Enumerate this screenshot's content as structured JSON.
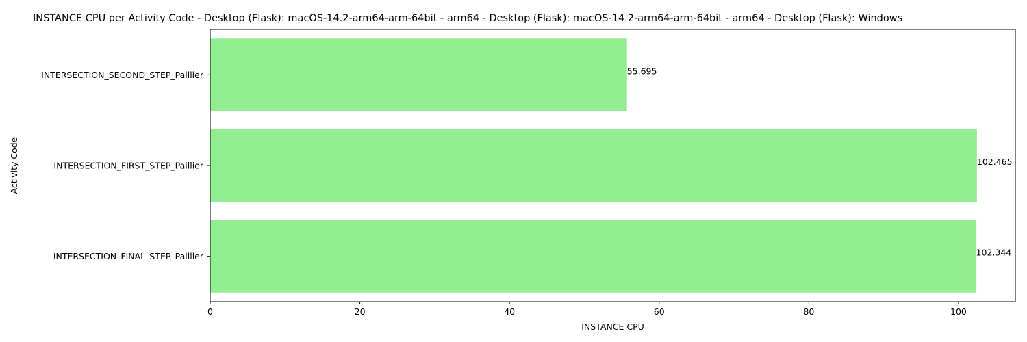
{
  "chart_data": {
    "type": "bar",
    "orientation": "horizontal",
    "title": "INSTANCE CPU per Activity Code - Desktop (Flask): macOS-14.2-arm64-arm-64bit - arm64 - Desktop (Flask): macOS-14.2-arm64-arm-64bit - arm64 - Desktop (Flask): Windows",
    "xlabel": "INSTANCE CPU",
    "ylabel": "Activity Code",
    "categories": [
      "INTERSECTION_SECOND_STEP_Paillier",
      "INTERSECTION_FIRST_STEP_Paillier",
      "INTERSECTION_FINAL_STEP_Paillier"
    ],
    "values": [
      55.695,
      102.465,
      102.344
    ],
    "value_labels": [
      "55.695",
      "102.465",
      "102.344"
    ],
    "xlim": [
      0,
      107.6
    ],
    "xticks": [
      0,
      20,
      40,
      60,
      80,
      100
    ],
    "xtick_labels": [
      "0",
      "20",
      "40",
      "60",
      "80",
      "100"
    ],
    "grid": false,
    "bar_color": "#90ee90"
  }
}
